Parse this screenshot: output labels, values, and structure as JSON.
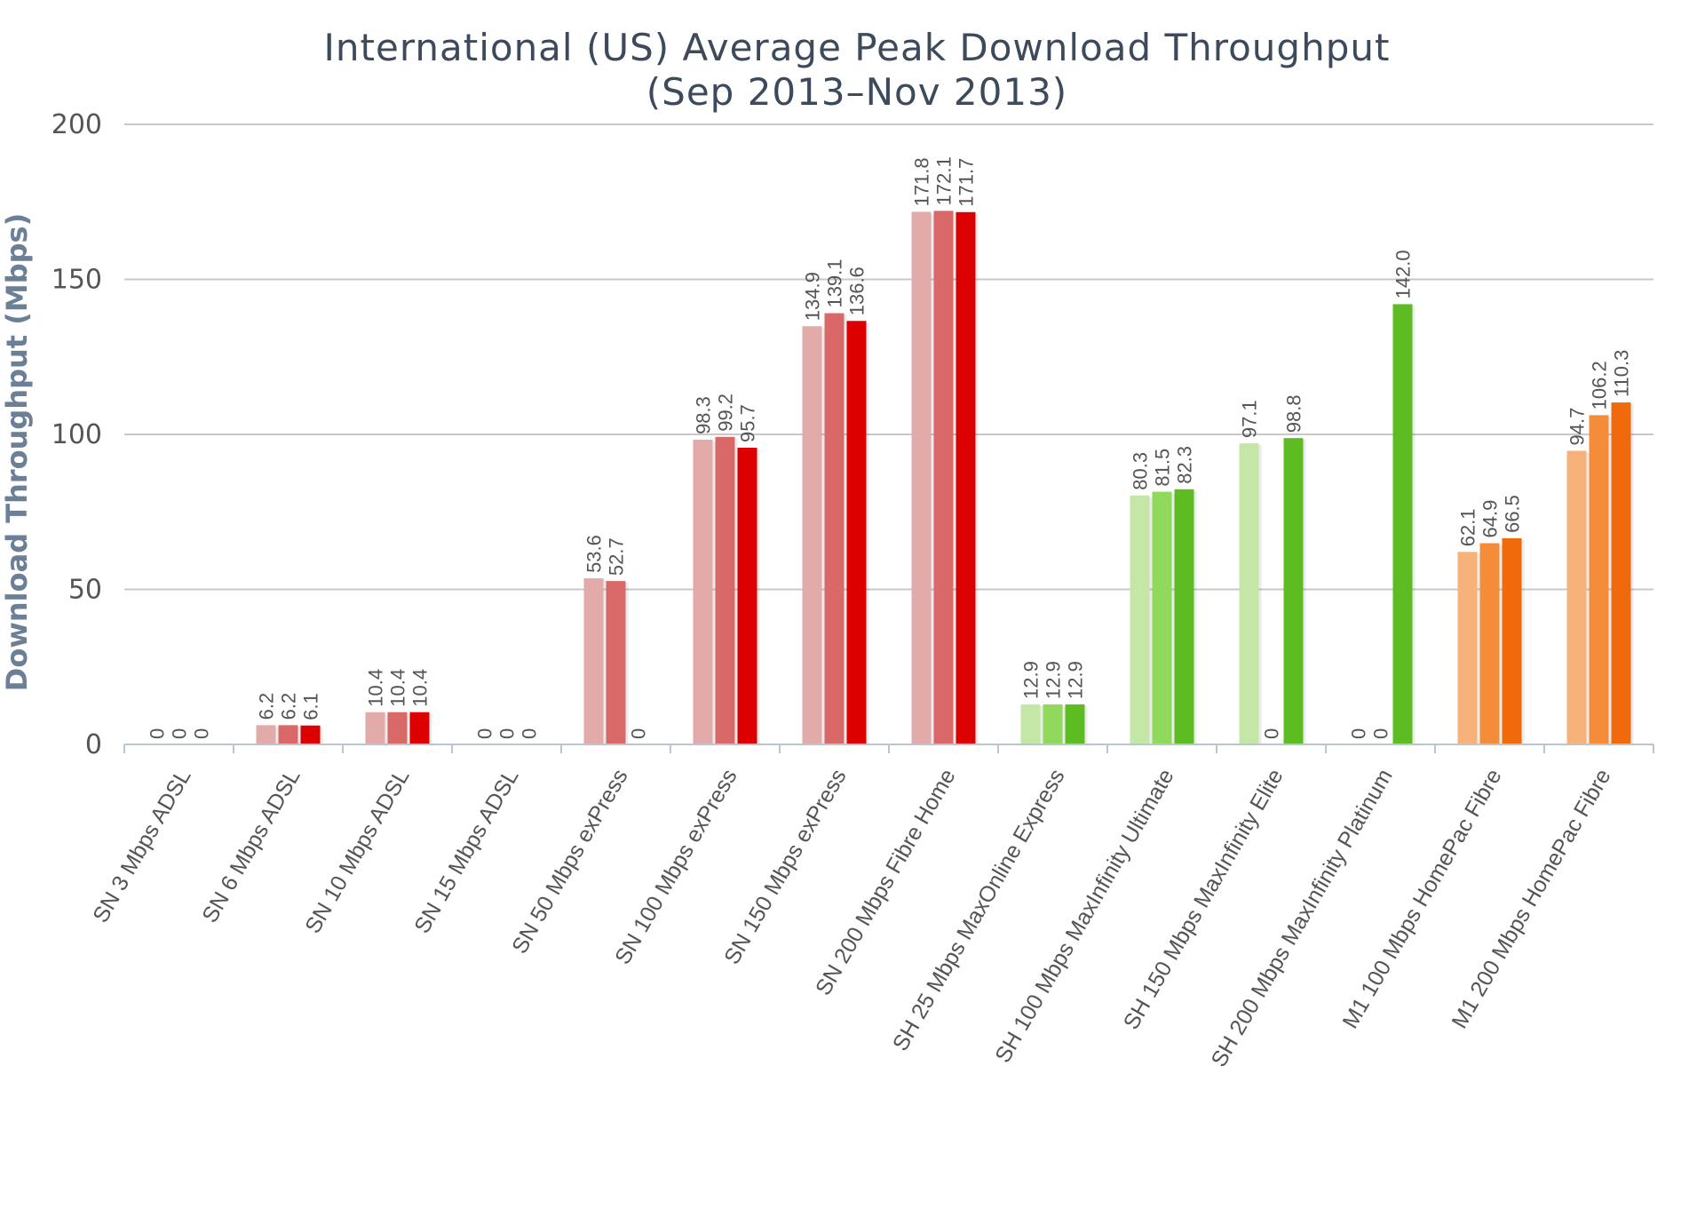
{
  "chart_data": {
    "type": "bar",
    "title": "International (US) Average Peak Download Throughput",
    "subtitle": "(Sep 2013–Nov 2013)",
    "ylabel": "Download Throughput (Mbps)",
    "xlabel": "",
    "ylim": [
      0,
      200
    ],
    "yticks": [
      0,
      50,
      100,
      150,
      200
    ],
    "grid": true,
    "categories": [
      "SN 3 Mbps ADSL",
      "SN 6 Mbps ADSL",
      "SN 10 Mbps ADSL",
      "SN 15 Mbps ADSL",
      "SN 50 Mbps exPress",
      "SN 100 Mbps exPress",
      "SN 150 Mbps exPress",
      "SN 200 Mbps Fibre Home",
      "SH 25 Mbps MaxOnline Express",
      "SH 100 Mbps MaxInfinity Ultimate",
      "SH 150 Mbps MaxInfinity Elite",
      "SH 200 Mbps MaxInfinity Platinum",
      "M1 100 Mbps HomePac Fibre",
      "M1 200 Mbps HomePac Fibre"
    ],
    "groups": [
      {
        "values": [
          0,
          0,
          0
        ],
        "labels": [
          "0",
          "0",
          "0"
        ],
        "colors": [
          "#e3aaaa",
          "#d96868",
          "#dd0000"
        ]
      },
      {
        "values": [
          6.2,
          6.2,
          6.1
        ],
        "labels": [
          "6.2",
          "6.2",
          "6.1"
        ],
        "colors": [
          "#e3aaaa",
          "#d96868",
          "#dd0000"
        ]
      },
      {
        "values": [
          10.4,
          10.4,
          10.4
        ],
        "labels": [
          "10.4",
          "10.4",
          "10.4"
        ],
        "colors": [
          "#e3aaaa",
          "#d96868",
          "#dd0000"
        ]
      },
      {
        "values": [
          0,
          0,
          0
        ],
        "labels": [
          "0",
          "0",
          "0"
        ],
        "colors": [
          "#e3aaaa",
          "#d96868",
          "#dd0000"
        ]
      },
      {
        "values": [
          53.6,
          52.7,
          0
        ],
        "labels": [
          "53.6",
          "52.7",
          "0"
        ],
        "colors": [
          "#e3aaaa",
          "#d96868",
          "#dd0000"
        ]
      },
      {
        "values": [
          98.3,
          99.2,
          95.7
        ],
        "labels": [
          "98.3",
          "99.2",
          "95.7"
        ],
        "colors": [
          "#e3aaaa",
          "#d96868",
          "#dd0000"
        ]
      },
      {
        "values": [
          134.9,
          139.1,
          136.6
        ],
        "labels": [
          "134.9",
          "139.1",
          "136.6"
        ],
        "colors": [
          "#e3aaaa",
          "#d96868",
          "#dd0000"
        ]
      },
      {
        "values": [
          171.8,
          172.1,
          171.7
        ],
        "labels": [
          "171.8",
          "172.1",
          "171.7"
        ],
        "colors": [
          "#e3aaaa",
          "#d96868",
          "#dd0000"
        ]
      },
      {
        "values": [
          12.9,
          12.9,
          12.9
        ],
        "labels": [
          "12.9",
          "12.9",
          "12.9"
        ],
        "colors": [
          "#c4e6a6",
          "#8fd95c",
          "#5cbc22"
        ]
      },
      {
        "values": [
          80.3,
          81.5,
          82.3
        ],
        "labels": [
          "80.3",
          "81.5",
          "82.3"
        ],
        "colors": [
          "#c4e6a6",
          "#8fd95c",
          "#5cbc22"
        ]
      },
      {
        "values": [
          97.1,
          0,
          98.8
        ],
        "labels": [
          "97.1",
          "0",
          "98.8"
        ],
        "colors": [
          "#c4e6a6",
          "#8fd95c",
          "#5cbc22"
        ]
      },
      {
        "values": [
          0,
          0,
          142.0
        ],
        "labels": [
          "0",
          "0",
          "142.0"
        ],
        "colors": [
          "#c4e6a6",
          "#8fd95c",
          "#5cbc22"
        ]
      },
      {
        "values": [
          62.1,
          64.9,
          66.5
        ],
        "labels": [
          "62.1",
          "64.9",
          "66.5"
        ],
        "colors": [
          "#f7b27a",
          "#f58c3a",
          "#f06a0c"
        ]
      },
      {
        "values": [
          94.7,
          106.2,
          110.3
        ],
        "labels": [
          "94.7",
          "106.2",
          "110.3"
        ],
        "colors": [
          "#f7b27a",
          "#f58c3a",
          "#f06a0c"
        ]
      }
    ]
  }
}
